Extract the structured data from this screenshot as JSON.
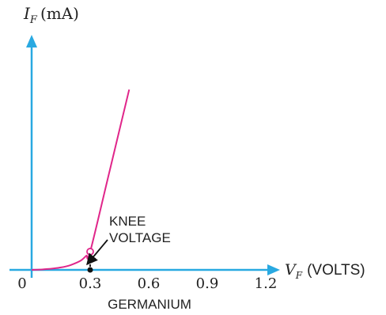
{
  "colors": {
    "axis": "#29a9e1",
    "curve": "#e0268a",
    "text": "#222222",
    "marker_fill": "#ffffff",
    "guide": "#111111"
  },
  "chart_data": {
    "type": "line",
    "title": "",
    "subtitle": "GERMANIUM",
    "ylabel_main": "I",
    "ylabel_sub": "F",
    "ylabel_unit": "(mA)",
    "xlabel_main": "V",
    "xlabel_sub": "F",
    "xlabel_unit": "(VOLTS)",
    "origin_label": "0",
    "x_ticks": [
      "0.3",
      "0.6",
      "0.9",
      "1.2"
    ],
    "x_tick_values": [
      0.3,
      0.6,
      0.9,
      1.2
    ],
    "xlim": [
      0,
      1.6
    ],
    "ylim": [
      0,
      1.0
    ],
    "grid": false,
    "legend": "none",
    "series": [
      {
        "x": [
          0,
          0.05,
          0.1,
          0.15,
          0.2,
          0.25,
          0.28,
          0.3,
          0.4,
          0.5
        ],
        "y": [
          0,
          0.002,
          0.006,
          0.012,
          0.024,
          0.045,
          0.07,
          0.09,
          0.49,
          0.89
        ]
      }
    ],
    "knee": {
      "x": 0.3,
      "y": 0.09
    },
    "annotation": {
      "line1": "KNEE",
      "line2": "VOLTAGE"
    }
  }
}
